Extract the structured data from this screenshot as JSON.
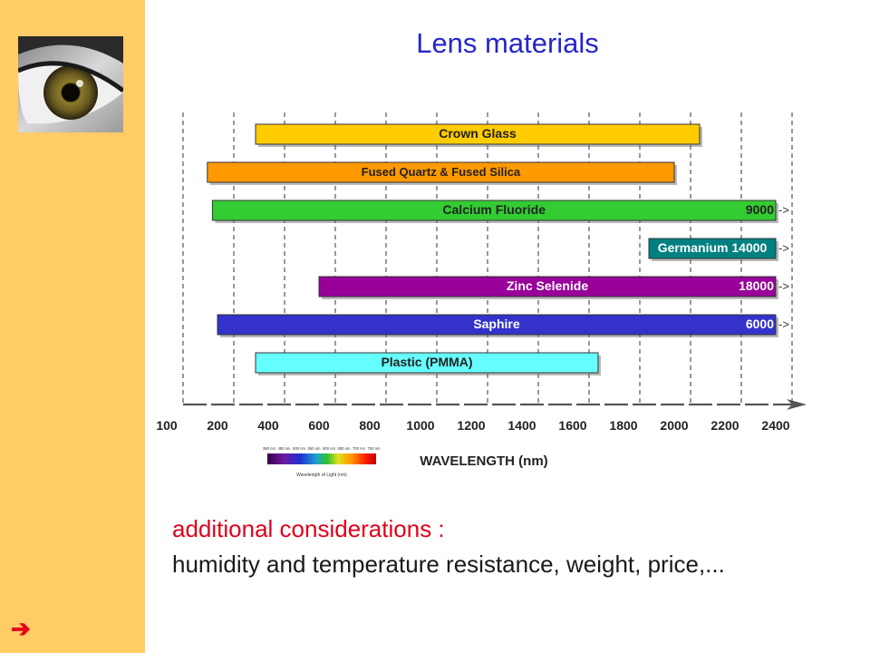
{
  "slide": {
    "title": "Lens materials",
    "note_heading": "additional considerations :",
    "note_body": "humidity and temperature resistance, weight, price,...",
    "nav_icon": "right-arrow-icon",
    "logo_icon": "eye-icon",
    "colors": {
      "sidebar": "#ffcc66",
      "title": "#2626c8",
      "note_heading": "#e0001a",
      "nav_arrow": "#e8001a"
    }
  },
  "spectrum_inset": {
    "ticks": [
      "380 nm",
      "450 nm",
      "500 nm",
      "550 nm",
      "600 nm",
      "650 nm",
      "700 nm",
      "750 nm"
    ],
    "caption": "Wavelength of Light (nm)"
  },
  "chart_data": {
    "type": "bar",
    "orientation": "horizontal-range",
    "xlabel": "WAVELENGTH (nm)",
    "x_ticks": [
      100,
      200,
      400,
      600,
      800,
      1000,
      1200,
      1400,
      1600,
      1800,
      2000,
      2200,
      2400
    ],
    "xlim": [
      100,
      2400
    ],
    "grid": "vertical dashed",
    "series": [
      {
        "label": "Crown Glass",
        "start": 350,
        "end": 2100,
        "color": "#ffcc00",
        "end_value": "",
        "continues": false
      },
      {
        "label": "Fused Quartz & Fused Silica",
        "start": 180,
        "end": 2000,
        "color": "#ff9900",
        "end_value": "",
        "continues": false
      },
      {
        "label": "Calcium Fluoride",
        "start": 190,
        "end": 2400,
        "color": "#33cc33",
        "end_value": "9000",
        "continues": true
      },
      {
        "label": "Germanium  14000",
        "start": 1900,
        "end": 2400,
        "color": "#008080",
        "end_value": "",
        "continues": true
      },
      {
        "label": "Zinc Selenide",
        "start": 600,
        "end": 2400,
        "color": "#990099",
        "end_value": "18000",
        "continues": true
      },
      {
        "label": "Saphire",
        "start": 200,
        "end": 2400,
        "color": "#3333cc",
        "end_value": "6000",
        "continues": true
      },
      {
        "label": "Plastic (PMMA)",
        "start": 350,
        "end": 1700,
        "color": "#66ffff",
        "end_value": "",
        "continues": false
      }
    ]
  }
}
